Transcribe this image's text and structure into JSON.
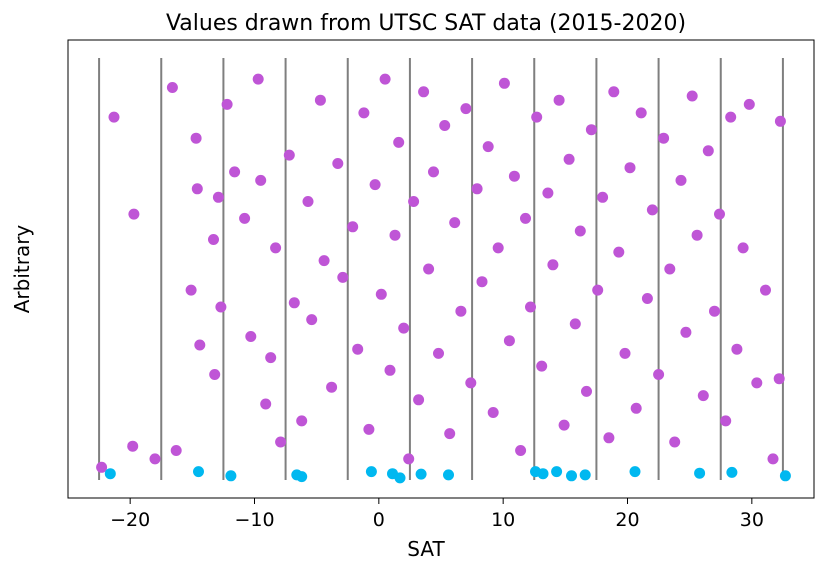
{
  "chart_data": {
    "type": "scatter",
    "title": "Values drawn from UTSC SAT data (2015-2020)",
    "xlabel": "SAT",
    "ylabel": "Arbitrary",
    "xlim": [
      -25,
      35
    ],
    "ylim": [
      0,
      1
    ],
    "grid": false,
    "legend": "none",
    "x_ticks": [
      -20,
      -10,
      0,
      10,
      20,
      30
    ],
    "x_tick_labels": [
      "−20",
      "−10",
      "0",
      "10",
      "20",
      "30"
    ],
    "bin_edges": [
      -22.5,
      -17.5,
      -12.5,
      -7.5,
      -2.5,
      2.5,
      7.5,
      12.5,
      17.5,
      22.5,
      27.5,
      32.5
    ],
    "colors": {
      "main": "#bf55d6",
      "accent": "#00b8f0",
      "bin_line": "#7f7f7f",
      "axis": "#000000"
    },
    "series": [
      {
        "color": "#bf55d6",
        "points": [
          [
            -22.3,
            0.03
          ],
          [
            -21.3,
            0.86
          ],
          [
            -19.7,
            0.63
          ],
          [
            -19.8,
            0.08
          ],
          [
            -18.0,
            0.05
          ],
          [
            -16.6,
            0.93
          ],
          [
            -16.3,
            0.07
          ],
          [
            -15.1,
            0.45
          ],
          [
            -14.7,
            0.81
          ],
          [
            -14.6,
            0.69
          ],
          [
            -14.4,
            0.32
          ],
          [
            -13.3,
            0.57
          ],
          [
            -13.2,
            0.25
          ],
          [
            -12.9,
            0.67
          ],
          [
            -12.7,
            0.41
          ],
          [
            -12.2,
            0.89
          ],
          [
            -11.6,
            0.73
          ],
          [
            -10.8,
            0.62
          ],
          [
            -10.3,
            0.34
          ],
          [
            -9.7,
            0.95
          ],
          [
            -9.5,
            0.71
          ],
          [
            -9.1,
            0.18
          ],
          [
            -8.7,
            0.29
          ],
          [
            -8.3,
            0.55
          ],
          [
            -7.9,
            0.09
          ],
          [
            -7.2,
            0.77
          ],
          [
            -6.8,
            0.42
          ],
          [
            -6.2,
            0.14
          ],
          [
            -5.7,
            0.66
          ],
          [
            -5.4,
            0.38
          ],
          [
            -4.7,
            0.9
          ],
          [
            -4.4,
            0.52
          ],
          [
            -3.8,
            0.22
          ],
          [
            -3.3,
            0.75
          ],
          [
            -2.9,
            0.48
          ],
          [
            -2.1,
            0.6
          ],
          [
            -1.7,
            0.31
          ],
          [
            -1.2,
            0.87
          ],
          [
            -0.8,
            0.12
          ],
          [
            -0.3,
            0.7
          ],
          [
            0.2,
            0.44
          ],
          [
            0.5,
            0.95
          ],
          [
            0.9,
            0.26
          ],
          [
            1.3,
            0.58
          ],
          [
            1.6,
            0.8
          ],
          [
            2.0,
            0.36
          ],
          [
            2.4,
            0.05
          ],
          [
            2.8,
            0.66
          ],
          [
            3.2,
            0.19
          ],
          [
            3.6,
            0.92
          ],
          [
            4.0,
            0.5
          ],
          [
            4.4,
            0.73
          ],
          [
            4.8,
            0.3
          ],
          [
            5.3,
            0.84
          ],
          [
            5.7,
            0.11
          ],
          [
            6.1,
            0.61
          ],
          [
            6.6,
            0.4
          ],
          [
            7.0,
            0.88
          ],
          [
            7.4,
            0.23
          ],
          [
            7.9,
            0.69
          ],
          [
            8.3,
            0.47
          ],
          [
            8.8,
            0.79
          ],
          [
            9.2,
            0.16
          ],
          [
            9.6,
            0.55
          ],
          [
            10.1,
            0.94
          ],
          [
            10.5,
            0.33
          ],
          [
            10.9,
            0.72
          ],
          [
            11.4,
            0.07
          ],
          [
            11.8,
            0.62
          ],
          [
            12.2,
            0.41
          ],
          [
            12.7,
            0.86
          ],
          [
            13.1,
            0.27
          ],
          [
            13.6,
            0.68
          ],
          [
            14.0,
            0.51
          ],
          [
            14.5,
            0.9
          ],
          [
            14.9,
            0.13
          ],
          [
            15.3,
            0.76
          ],
          [
            15.8,
            0.37
          ],
          [
            16.2,
            0.59
          ],
          [
            16.7,
            0.21
          ],
          [
            17.1,
            0.83
          ],
          [
            17.6,
            0.45
          ],
          [
            18.0,
            0.67
          ],
          [
            18.5,
            0.1
          ],
          [
            18.9,
            0.92
          ],
          [
            19.3,
            0.54
          ],
          [
            19.8,
            0.3
          ],
          [
            20.2,
            0.74
          ],
          [
            20.7,
            0.17
          ],
          [
            21.1,
            0.87
          ],
          [
            21.6,
            0.43
          ],
          [
            22.0,
            0.64
          ],
          [
            22.5,
            0.25
          ],
          [
            22.9,
            0.81
          ],
          [
            23.4,
            0.5
          ],
          [
            23.8,
            0.09
          ],
          [
            24.3,
            0.71
          ],
          [
            24.7,
            0.35
          ],
          [
            25.2,
            0.91
          ],
          [
            25.6,
            0.58
          ],
          [
            26.1,
            0.2
          ],
          [
            26.5,
            0.78
          ],
          [
            27.0,
            0.4
          ],
          [
            27.4,
            0.63
          ],
          [
            27.9,
            0.14
          ],
          [
            28.3,
            0.86
          ],
          [
            28.8,
            0.31
          ],
          [
            29.3,
            0.55
          ],
          [
            29.8,
            0.89
          ],
          [
            30.4,
            0.23
          ],
          [
            31.1,
            0.45
          ],
          [
            31.7,
            0.05
          ],
          [
            32.2,
            0.24
          ],
          [
            32.3,
            0.85
          ]
        ]
      },
      {
        "color": "#00b8f0",
        "points": [
          [
            -21.6,
            0.015
          ],
          [
            -14.5,
            0.02
          ],
          [
            -11.9,
            0.01
          ],
          [
            -6.6,
            0.012
          ],
          [
            -6.2,
            0.008
          ],
          [
            -0.6,
            0.02
          ],
          [
            1.1,
            0.015
          ],
          [
            1.7,
            0.005
          ],
          [
            3.4,
            0.014
          ],
          [
            5.6,
            0.012
          ],
          [
            12.6,
            0.02
          ],
          [
            13.2,
            0.015
          ],
          [
            14.3,
            0.02
          ],
          [
            15.5,
            0.01
          ],
          [
            16.6,
            0.012
          ],
          [
            20.6,
            0.02
          ],
          [
            25.8,
            0.016
          ],
          [
            28.4,
            0.018
          ],
          [
            32.7,
            0.01
          ]
        ]
      }
    ]
  }
}
